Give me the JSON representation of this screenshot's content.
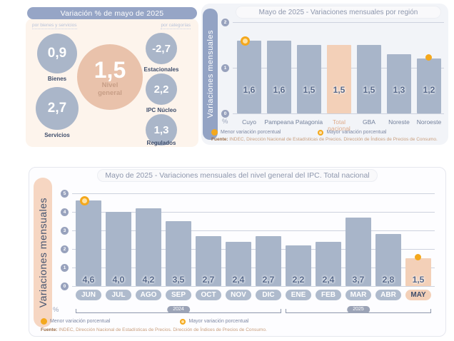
{
  "palette": {
    "bar_blue": "#a8b5c9",
    "highlight_peach": "#f3d0b8",
    "header_blue": "#96a5c6",
    "marker_orange": "#f4a81d",
    "value_text": "#56688a"
  },
  "summary_panel": {
    "title": "Variación % de mayo de 2025",
    "group_left_label": "por bienes y servicios",
    "group_right_label": "por categorías",
    "nivel_general": {
      "value": "1,5",
      "label": "Nivel general"
    },
    "bienes_servicios": [
      {
        "value": "0,9",
        "label": "Bienes"
      },
      {
        "value": "2,7",
        "label": "Servicios"
      }
    ],
    "categorias": [
      {
        "value": "-2,7",
        "label": "Estacionales"
      },
      {
        "value": "2,2",
        "label": "IPC Núcleo"
      },
      {
        "value": "1,3",
        "label": "Regulados"
      }
    ]
  },
  "chart_data": [
    {
      "id": "region",
      "type": "bar",
      "title": "Mayo de 2025 - Variaciones mensuales por región",
      "ylabel": "Variaciones  mensuales",
      "xlabel": "%",
      "categories": [
        "Cuyo",
        "Pampeana",
        "Patagonia",
        "Total nacional",
        "GBA",
        "Noreste",
        "Noroeste"
      ],
      "values": [
        1.6,
        1.6,
        1.5,
        1.5,
        1.5,
        1.3,
        1.2
      ],
      "value_labels": [
        "1,6",
        "1,6",
        "1,5",
        "1,5",
        "1,5",
        "1,3",
        "1,2"
      ],
      "ylim": [
        0,
        2
      ],
      "yticks": [
        2,
        1,
        0
      ],
      "grid": true,
      "highlight_index": 3,
      "max_marker_index": 0,
      "min_marker_index": 6,
      "legend": [
        {
          "label": "Menor variación porcentual",
          "marker": "solid-orange-dot"
        },
        {
          "label": "Mayor variación porcentual",
          "marker": "ring-orange-dot"
        }
      ],
      "source_prefix": "Fuente:",
      "source": "INDEC, Dirección Nacional de Estadísticas de Precios. Dirección de Índices de Precios de Consumo."
    },
    {
      "id": "monthly",
      "type": "bar",
      "title": "Mayo de 2025 - Variaciones mensuales del nivel general del IPC. Total nacional",
      "ylabel": "Variaciones mensuales",
      "xlabel": "%",
      "categories": [
        "JUN",
        "JUL",
        "AGO",
        "SEP",
        "OCT",
        "NOV",
        "DIC",
        "ENE",
        "FEB",
        "MAR",
        "ABR",
        "MAY"
      ],
      "values": [
        4.6,
        4.0,
        4.2,
        3.5,
        2.7,
        2.4,
        2.7,
        2.2,
        2.4,
        3.7,
        2.8,
        1.5
      ],
      "value_labels": [
        "4,6",
        "4,0",
        "4,2",
        "3,5",
        "2,7",
        "2,4",
        "2,7",
        "2,2",
        "2,4",
        "3,7",
        "2,8",
        "1,5"
      ],
      "ylim": [
        0,
        5
      ],
      "yticks": [
        5,
        4,
        3,
        2,
        1,
        0
      ],
      "grid": true,
      "highlight_index": 11,
      "max_marker_index": 0,
      "min_marker_index": 11,
      "year_groups": [
        {
          "label": "2024",
          "start": 0,
          "end": 6
        },
        {
          "label": "2025",
          "start": 7,
          "end": 11
        }
      ],
      "legend": [
        {
          "label": "Menor variación porcentual",
          "marker": "solid-orange-dot"
        },
        {
          "label": "Mayor variación porcentual",
          "marker": "ring-orange-dot"
        }
      ],
      "source_prefix": "Fuente:",
      "source": "INDEC, Dirección Nacional de Estadísticas de Precios. Dirección de Índices de Precios de Consumo."
    }
  ]
}
